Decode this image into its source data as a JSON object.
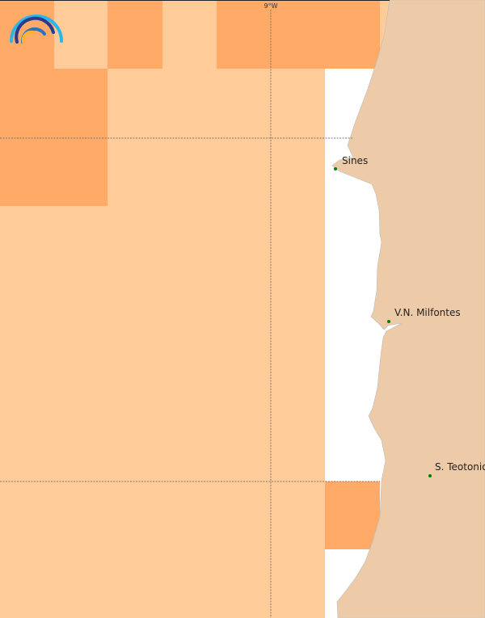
{
  "map": {
    "graticule_label": "9°W",
    "colors": {
      "cell_high": "#FFAA66",
      "cell_low": "#FFCC99",
      "land": "#EECBA8",
      "sea_nodata": "#FFFFFF",
      "place_marker": "#008000"
    },
    "places": [
      {
        "name": "Sines"
      },
      {
        "name": "V.N. Milfontes"
      },
      {
        "name": "S. Teotonio"
      }
    ],
    "logo_icon": "rainbow-arcs-logo"
  }
}
